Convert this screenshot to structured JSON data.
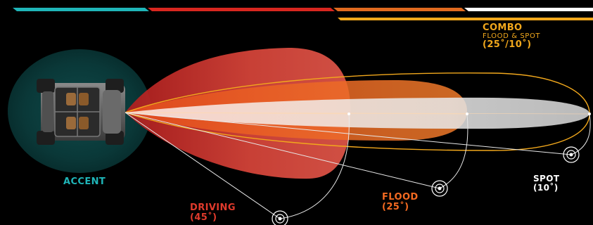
{
  "colors": {
    "accent": "#1fb5b8",
    "driving": "#e03a2c",
    "flood": "#f36a21",
    "combo": "#f2a81c",
    "spot": "#ffffff",
    "bar_teal": "#1fb5b8",
    "bar_red": "#d8261f",
    "bar_orange": "#e06a1f",
    "bar_white": "#ffffff",
    "bar_gold": "#f2a81c"
  },
  "labels": {
    "accent": {
      "name": "ACCENT"
    },
    "driving": {
      "name": "DRIVING",
      "angle": "(45˚)"
    },
    "flood": {
      "name": "FLOOD",
      "angle": "(25˚)"
    },
    "spot": {
      "name": "SPOT",
      "angle": "(10˚)"
    },
    "combo": {
      "name": "COMBO",
      "subtitle": "FLOOD & SPOT",
      "angle": "(25˚/10˚)"
    }
  },
  "icons": {
    "vehicle": "utv-top-view-icon",
    "target": "beam-target-icon"
  }
}
